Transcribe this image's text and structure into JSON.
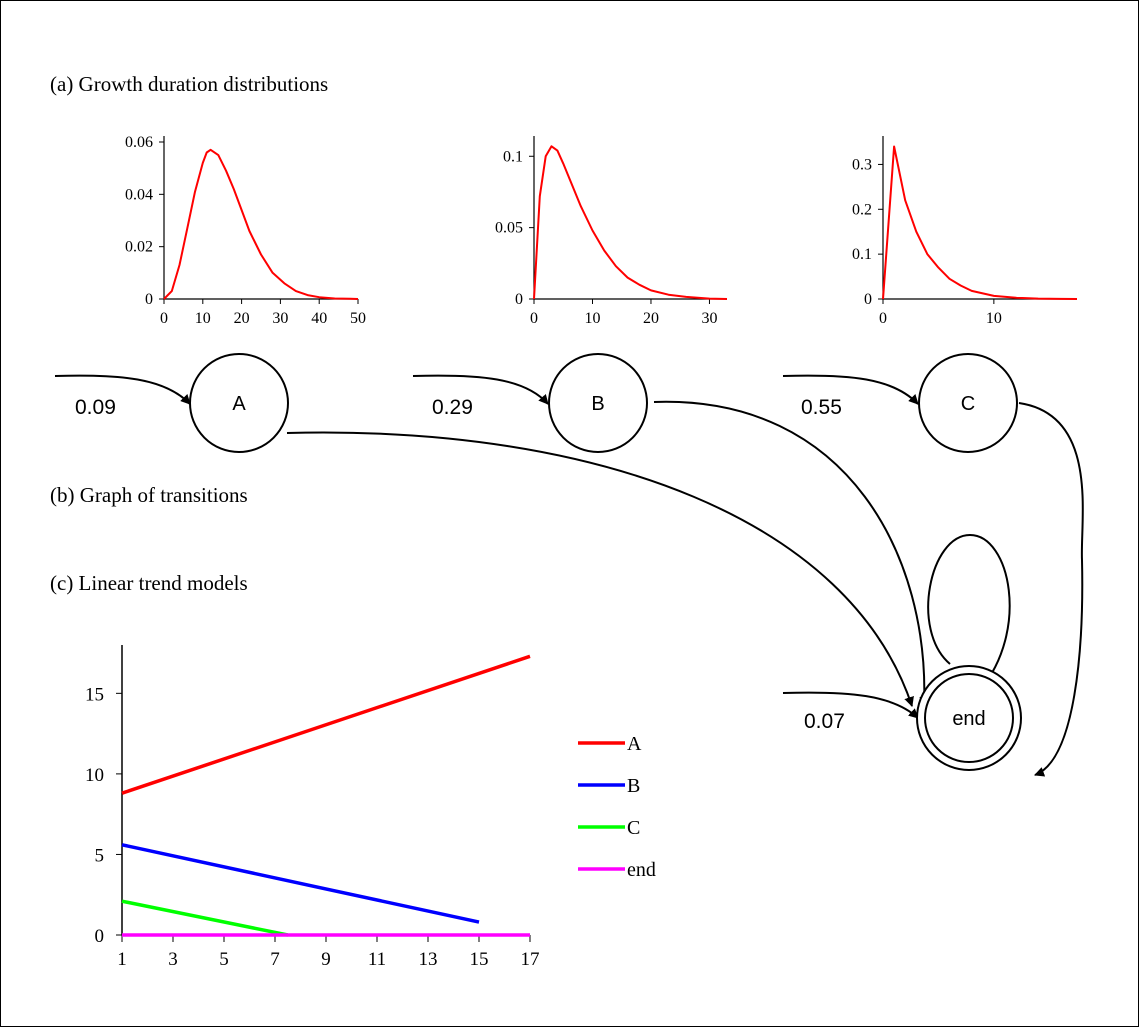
{
  "sections": {
    "a_title": "(a) Growth duration distributions",
    "b_title": "(b) Graph of transitions",
    "c_title": "(c) Linear trend  models"
  },
  "colors": {
    "curve": "#ff0000",
    "A": "#ff0000",
    "B": "#0000ff",
    "C": "#00ff00",
    "end": "#ff00ff",
    "ink": "#000000"
  },
  "chart_data": [
    {
      "type": "line",
      "series": [
        {
          "x": [
            0,
            2,
            4,
            6,
            8,
            10,
            11,
            12,
            14,
            16,
            18,
            20,
            22,
            25,
            28,
            31,
            34,
            37,
            40,
            44,
            48,
            50
          ],
          "values": [
            0,
            0.003,
            0.013,
            0.027,
            0.041,
            0.052,
            0.056,
            0.057,
            0.055,
            0.049,
            0.042,
            0.034,
            0.026,
            0.017,
            0.01,
            0.006,
            0.003,
            0.0015,
            0.0007,
            0.0002,
            0.0001,
            0
          ]
        }
      ],
      "xlim": [
        0,
        50
      ],
      "ylim": [
        0,
        0.06
      ],
      "xticks": [
        "0",
        "10",
        "20",
        "30",
        "40",
        "50"
      ],
      "yticks": [
        "0",
        "0.02",
        "0.04",
        "0.06"
      ]
    },
    {
      "type": "line",
      "series": [
        {
          "x": [
            0,
            1,
            2,
            3,
            4,
            5,
            6,
            8,
            10,
            12,
            14,
            16,
            18,
            20,
            23,
            26,
            30,
            33
          ],
          "values": [
            0,
            0.072,
            0.1,
            0.107,
            0.104,
            0.095,
            0.085,
            0.065,
            0.048,
            0.034,
            0.023,
            0.015,
            0.01,
            0.006,
            0.003,
            0.0015,
            0.0003,
            0
          ]
        }
      ],
      "xlim": [
        0,
        33
      ],
      "ylim": [
        0,
        0.11
      ],
      "xticks": [
        "0",
        "10",
        "20",
        "30"
      ],
      "yticks": [
        "0",
        "0.05",
        "0.1"
      ]
    },
    {
      "type": "line",
      "series": [
        {
          "x": [
            0,
            1,
            2,
            3,
            4,
            5,
            6,
            7,
            8,
            10,
            12,
            14,
            16,
            17.5
          ],
          "values": [
            0,
            0.34,
            0.22,
            0.15,
            0.1,
            0.07,
            0.045,
            0.03,
            0.018,
            0.007,
            0.003,
            0.001,
            0.0003,
            0
          ]
        }
      ],
      "xlim": [
        0,
        17.5
      ],
      "ylim": [
        0,
        0.35
      ],
      "xticks": [
        "0",
        "10"
      ],
      "yticks": [
        "0",
        "0.1",
        "0.2",
        "0.3"
      ]
    },
    {
      "type": "line",
      "xlim": [
        1,
        17
      ],
      "ylim": [
        0,
        18
      ],
      "xticks": [
        "1",
        "3",
        "5",
        "7",
        "9",
        "11",
        "13",
        "15",
        "17"
      ],
      "yticks": [
        "0",
        "5",
        "10",
        "15"
      ],
      "series": [
        {
          "name": "A",
          "x": [
            1,
            17
          ],
          "values": [
            8.8,
            17.3
          ]
        },
        {
          "name": "B",
          "x": [
            1,
            15
          ],
          "values": [
            5.6,
            0.8
          ]
        },
        {
          "name": "C",
          "x": [
            1,
            7.5
          ],
          "values": [
            2.1,
            0
          ]
        },
        {
          "name": "end",
          "x": [
            1,
            17
          ],
          "values": [
            0,
            0
          ]
        }
      ]
    }
  ],
  "graph": {
    "nodes": [
      {
        "id": "A",
        "label": "A",
        "init_prob": "0.09"
      },
      {
        "id": "B",
        "label": "B",
        "init_prob": "0.29"
      },
      {
        "id": "C",
        "label": "C",
        "init_prob": "0.55"
      },
      {
        "id": "end",
        "label": "end",
        "init_prob": "0.07"
      }
    ]
  }
}
